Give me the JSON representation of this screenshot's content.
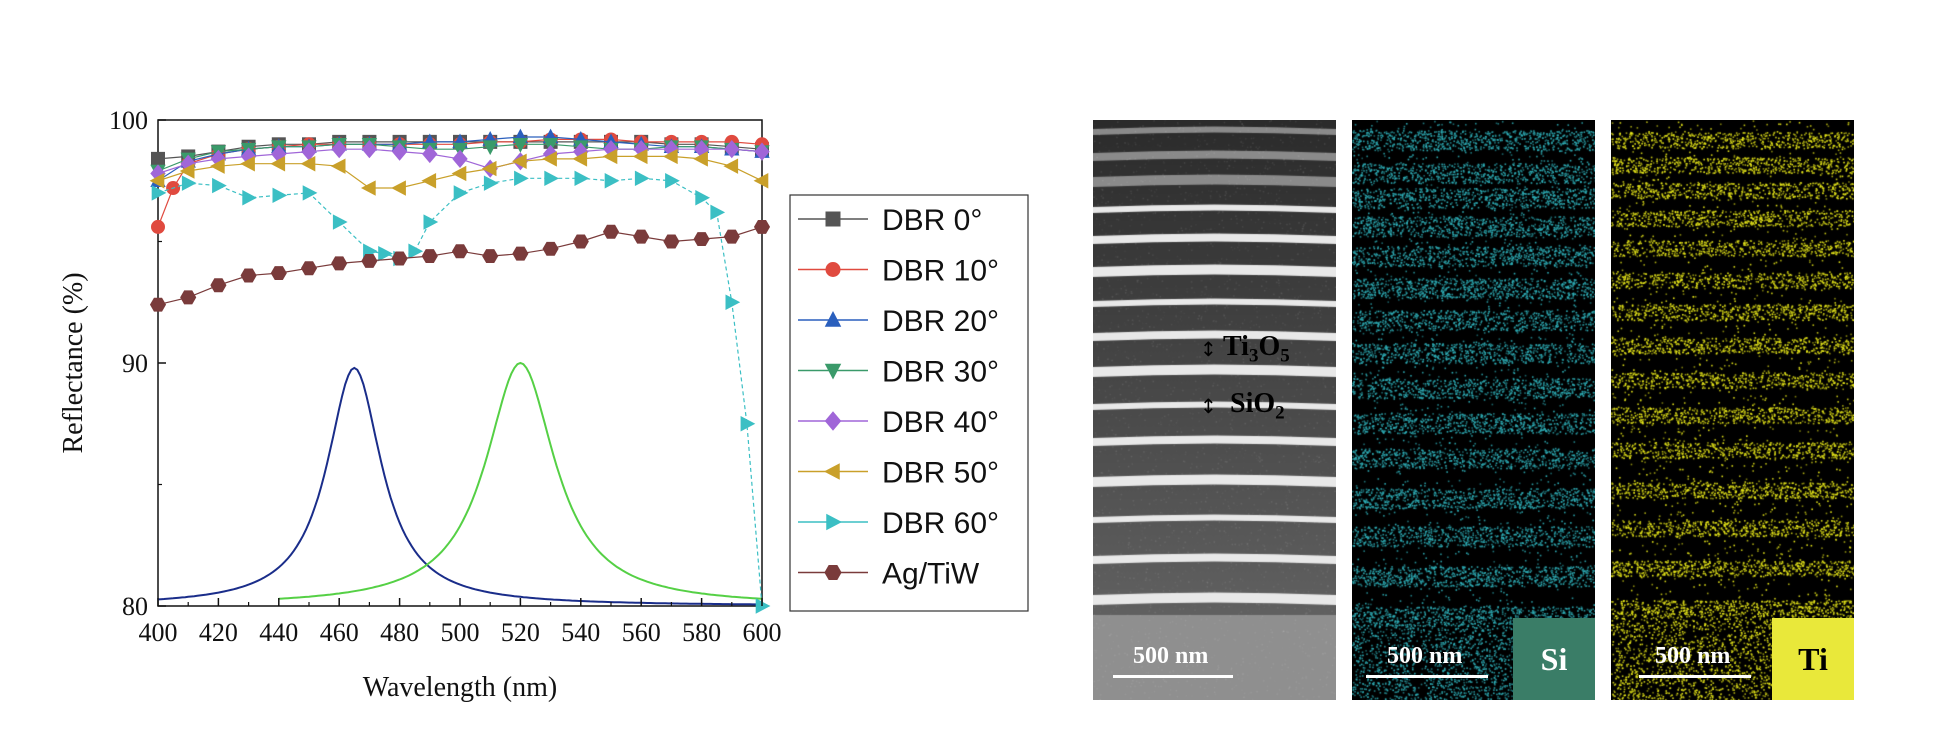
{
  "chart_data": {
    "type": "line",
    "xlabel": "Wavelength (nm)",
    "ylabel": "Reflectance (%)",
    "xlim": [
      400,
      600
    ],
    "ylim": [
      80,
      100
    ],
    "xticks": [
      400,
      420,
      440,
      460,
      480,
      500,
      520,
      540,
      560,
      580,
      600
    ],
    "yticks": [
      80,
      90,
      100
    ],
    "legend_position": "right, outside plot",
    "series": [
      {
        "name": "DBR 0°",
        "color": "#555555",
        "marker": "square",
        "x": [
          400,
          410,
          420,
          430,
          440,
          450,
          460,
          470,
          480,
          490,
          500,
          510,
          520,
          530,
          540,
          550,
          560,
          570,
          580,
          590,
          600
        ],
        "y": [
          98.4,
          98.5,
          98.7,
          98.9,
          99.0,
          99.0,
          99.1,
          99.1,
          99.1,
          99.1,
          99.1,
          99.1,
          99.1,
          99.1,
          99.1,
          99.1,
          99.1,
          99.0,
          99.0,
          98.9,
          98.8
        ]
      },
      {
        "name": "DBR 10°",
        "color": "#e04a3f",
        "marker": "circle",
        "x": [
          400,
          405,
          410,
          420,
          430,
          440,
          450,
          460,
          470,
          480,
          490,
          500,
          510,
          520,
          530,
          540,
          550,
          560,
          570,
          580,
          590,
          600
        ],
        "y": [
          95.6,
          97.2,
          98.2,
          98.6,
          98.8,
          98.9,
          99.0,
          99.0,
          99.0,
          99.0,
          99.0,
          99.0,
          99.1,
          99.1,
          99.2,
          99.2,
          99.2,
          99.1,
          99.1,
          99.1,
          99.1,
          99.0
        ]
      },
      {
        "name": "DBR 20°",
        "color": "#2a5fbd",
        "marker": "triangle-up",
        "x": [
          400,
          410,
          420,
          430,
          440,
          450,
          460,
          470,
          480,
          490,
          500,
          510,
          520,
          530,
          540,
          550,
          560,
          570,
          580,
          590,
          600
        ],
        "y": [
          97.5,
          98.3,
          98.6,
          98.8,
          98.9,
          98.9,
          99.0,
          99.0,
          99.0,
          99.1,
          99.1,
          99.2,
          99.3,
          99.3,
          99.2,
          99.1,
          99.0,
          98.9,
          98.9,
          98.8,
          98.7
        ]
      },
      {
        "name": "DBR 30°",
        "color": "#3a9a6a",
        "marker": "triangle-down",
        "x": [
          400,
          410,
          420,
          430,
          440,
          450,
          460,
          470,
          480,
          490,
          500,
          510,
          520,
          530,
          540,
          550,
          560,
          570,
          580,
          590,
          600
        ],
        "y": [
          97.9,
          98.4,
          98.7,
          98.8,
          98.9,
          98.9,
          99.0,
          99.0,
          98.9,
          98.8,
          98.8,
          98.9,
          99.0,
          99.0,
          98.9,
          98.8,
          98.8,
          98.9,
          98.9,
          98.8,
          98.7
        ]
      },
      {
        "name": "DBR 40°",
        "color": "#a066d8",
        "marker": "diamond",
        "x": [
          400,
          410,
          420,
          430,
          440,
          450,
          460,
          470,
          480,
          490,
          500,
          510,
          520,
          530,
          540,
          550,
          560,
          570,
          580,
          590,
          600
        ],
        "y": [
          97.8,
          98.2,
          98.4,
          98.5,
          98.6,
          98.7,
          98.8,
          98.8,
          98.7,
          98.6,
          98.4,
          98.0,
          98.3,
          98.6,
          98.7,
          98.8,
          98.8,
          98.8,
          98.8,
          98.8,
          98.7
        ]
      },
      {
        "name": "DBR 50°",
        "color": "#c9a02a",
        "marker": "triangle-left",
        "x": [
          400,
          410,
          420,
          430,
          440,
          450,
          460,
          470,
          480,
          490,
          500,
          510,
          520,
          530,
          540,
          550,
          560,
          570,
          580,
          590,
          600
        ],
        "y": [
          97.5,
          97.9,
          98.1,
          98.2,
          98.2,
          98.2,
          98.1,
          97.2,
          97.2,
          97.5,
          97.8,
          98.0,
          98.3,
          98.4,
          98.4,
          98.5,
          98.5,
          98.5,
          98.4,
          98.1,
          97.5
        ]
      },
      {
        "name": "DBR 60°",
        "color": "#3bbfc4",
        "marker": "triangle-right",
        "x": [
          400,
          410,
          420,
          430,
          440,
          450,
          460,
          470,
          475,
          480,
          485,
          490,
          500,
          510,
          520,
          530,
          540,
          550,
          560,
          570,
          580,
          585,
          590,
          595,
          600
        ],
        "y": [
          97.0,
          97.4,
          97.3,
          96.8,
          96.9,
          97.0,
          95.8,
          94.6,
          94.5,
          94.3,
          94.6,
          95.8,
          97.0,
          97.4,
          97.6,
          97.6,
          97.6,
          97.5,
          97.6,
          97.5,
          96.8,
          96.2,
          92.5,
          87.5,
          80.0
        ]
      },
      {
        "name": "Ag/TiW",
        "color": "#7a3b3b",
        "marker": "hexagon",
        "x": [
          400,
          410,
          420,
          430,
          440,
          450,
          460,
          470,
          480,
          490,
          500,
          510,
          520,
          530,
          540,
          550,
          560,
          570,
          580,
          590,
          600
        ],
        "y": [
          92.4,
          92.7,
          93.2,
          93.6,
          93.7,
          93.9,
          94.1,
          94.2,
          94.3,
          94.4,
          94.6,
          94.4,
          94.5,
          94.7,
          95.0,
          95.4,
          95.2,
          95.0,
          95.1,
          95.2,
          95.6
        ]
      }
    ],
    "emission_curves": [
      {
        "color": "#1a2d8a",
        "peak_nm": 465,
        "peak_value": 89.8,
        "baseline": 80
      },
      {
        "color": "#55d045",
        "peak_nm": 520,
        "peak_value": 90.0,
        "baseline": 80
      }
    ]
  },
  "micrographs": {
    "layer_labels": [
      {
        "base": "Ti",
        "sub1": "3",
        "mid": "O",
        "sub2": "5"
      },
      {
        "base": "SiO",
        "sub1": "2",
        "mid": "",
        "sub2": ""
      }
    ],
    "panels": [
      {
        "id": "sem",
        "scale_bar": "500 nm",
        "element": "",
        "stripe_color": "#ffffff"
      },
      {
        "id": "si",
        "scale_bar": "500 nm",
        "element": "Si",
        "box_color": "#3a7d67",
        "text_color": "#ffffff",
        "stripe_color": "#2fb1ba"
      },
      {
        "id": "ti",
        "scale_bar": "500 nm",
        "element": "Ti",
        "box_color": "#e9e83a",
        "text_color": "#000000",
        "stripe_color": "#eaea1a"
      }
    ]
  }
}
